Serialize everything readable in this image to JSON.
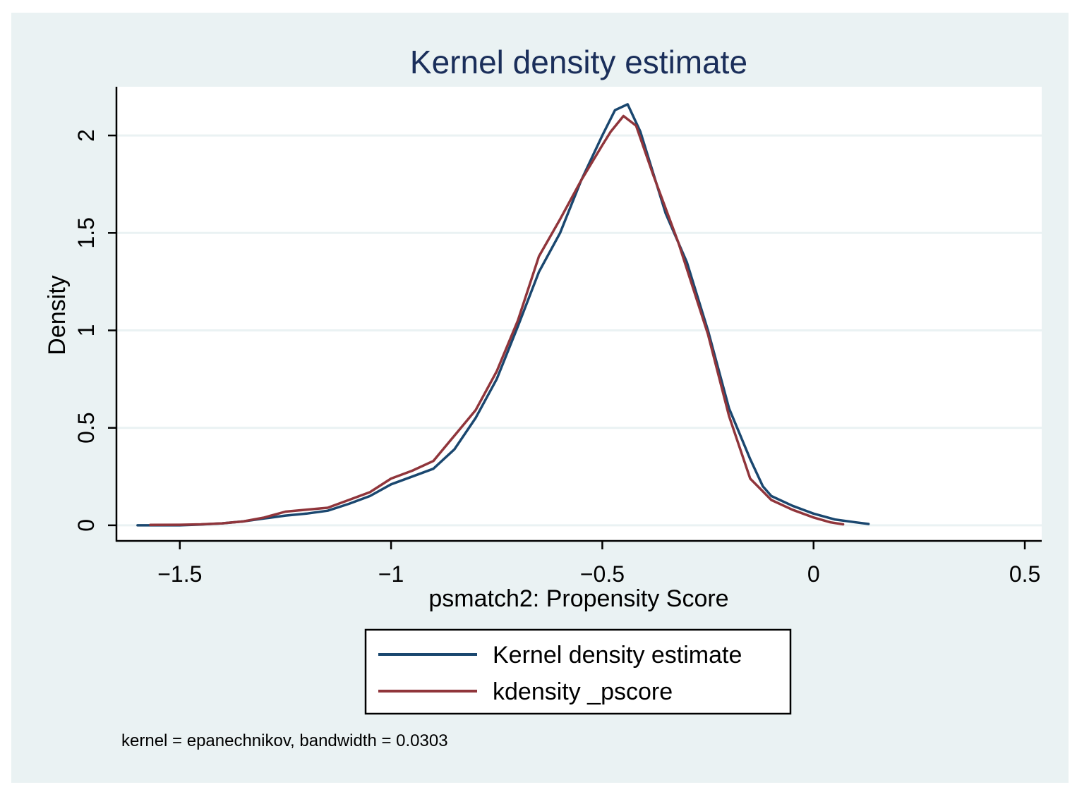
{
  "colors": {
    "outer_bg": "#eaf2f3",
    "plot_bg": "#ffffff",
    "grid": "#eaf2f3",
    "axis": "#000000",
    "title": "#1a2e5a",
    "series1": "#1a476f",
    "series2": "#90353b"
  },
  "chart_data": {
    "type": "line",
    "title": "Kernel density estimate",
    "xlabel": "psmatch2: Propensity Score",
    "ylabel": "Density",
    "xlim": [
      -1.65,
      0.54
    ],
    "ylim": [
      -0.08,
      2.25
    ],
    "x_ticks": [
      -1.5,
      -1,
      -0.5,
      0,
      0.5
    ],
    "x_tick_labels": [
      "−1.5",
      "−1",
      "−0.5",
      "0",
      "0.5"
    ],
    "y_ticks": [
      0,
      0.5,
      1,
      1.5,
      2
    ],
    "y_tick_labels": [
      "0",
      "0.5",
      "1",
      "1.5",
      "2"
    ],
    "grid": true,
    "legend_position": "bottom",
    "note": "kernel = epanechnikov, bandwidth = 0.0303",
    "series": [
      {
        "name": "Kernel density estimate",
        "x": [
          -1.6,
          -1.55,
          -1.5,
          -1.45,
          -1.4,
          -1.35,
          -1.3,
          -1.25,
          -1.2,
          -1.15,
          -1.1,
          -1.05,
          -1.0,
          -0.95,
          -0.9,
          -0.85,
          -0.8,
          -0.75,
          -0.7,
          -0.65,
          -0.6,
          -0.55,
          -0.5,
          -0.47,
          -0.44,
          -0.41,
          -0.35,
          -0.3,
          -0.25,
          -0.2,
          -0.15,
          -0.12,
          -0.1,
          -0.05,
          0.0,
          0.05,
          0.1,
          0.13
        ],
        "y": [
          0.0,
          0.0,
          0.0,
          0.004,
          0.01,
          0.02,
          0.035,
          0.05,
          0.06,
          0.075,
          0.11,
          0.15,
          0.21,
          0.25,
          0.29,
          0.39,
          0.55,
          0.75,
          1.02,
          1.3,
          1.5,
          1.77,
          2.0,
          2.13,
          2.16,
          2.02,
          1.6,
          1.35,
          1.0,
          0.6,
          0.34,
          0.2,
          0.15,
          0.1,
          0.06,
          0.03,
          0.015,
          0.007
        ]
      },
      {
        "name": "kdensity _pscore",
        "x": [
          -1.57,
          -1.5,
          -1.45,
          -1.4,
          -1.35,
          -1.3,
          -1.25,
          -1.2,
          -1.15,
          -1.1,
          -1.05,
          -1.0,
          -0.95,
          -0.9,
          -0.85,
          -0.8,
          -0.75,
          -0.7,
          -0.65,
          -0.6,
          -0.55,
          -0.5,
          -0.48,
          -0.45,
          -0.42,
          -0.38,
          -0.32,
          -0.25,
          -0.2,
          -0.15,
          -0.1,
          -0.05,
          0.0,
          0.04,
          0.07
        ],
        "y": [
          0.002,
          0.003,
          0.005,
          0.01,
          0.02,
          0.04,
          0.07,
          0.08,
          0.09,
          0.13,
          0.17,
          0.24,
          0.28,
          0.33,
          0.46,
          0.59,
          0.79,
          1.05,
          1.38,
          1.57,
          1.77,
          1.95,
          2.02,
          2.1,
          2.05,
          1.8,
          1.45,
          0.98,
          0.56,
          0.24,
          0.13,
          0.08,
          0.04,
          0.015,
          0.005
        ]
      }
    ]
  }
}
